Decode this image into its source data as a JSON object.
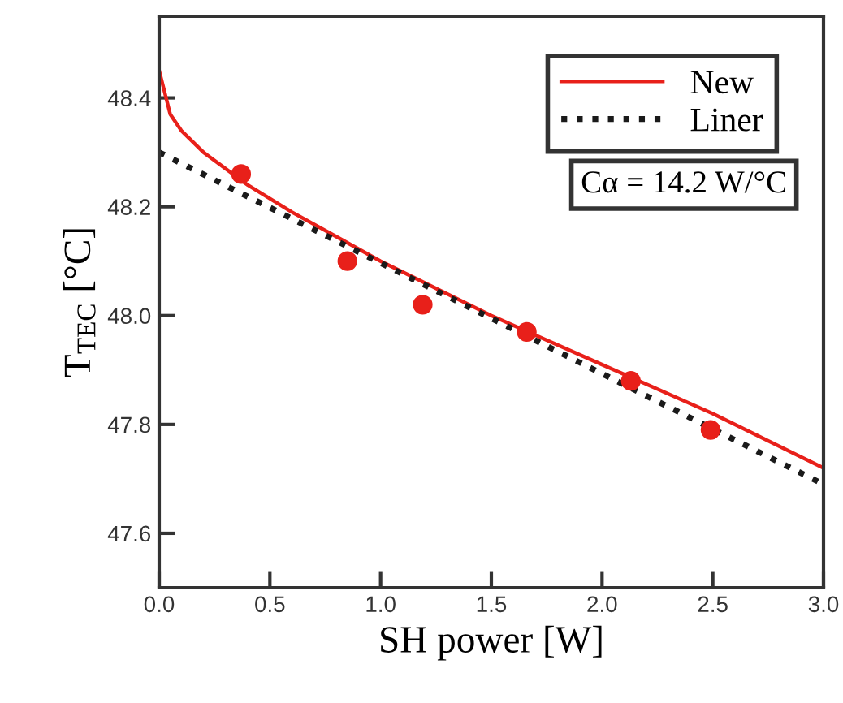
{
  "chart_data": {
    "type": "line",
    "xlabel": "SH power [W]",
    "ylabel": "T$_{TEC}$ [°C]",
    "xlim": [
      0,
      3.0
    ],
    "xticks": [
      {
        "value": 0,
        "label": "0.0"
      },
      0.5,
      {
        "value": 1,
        "label": "1.0"
      },
      1.5,
      {
        "value": 2,
        "label": "2.0"
      },
      2.5,
      {
        "value": 3,
        "label": "3.0"
      }
    ],
    "ylim": [
      47.5,
      48.55
    ],
    "yticks": [
      47.6,
      47.8,
      {
        "value": 48,
        "label": "48.0"
      },
      48.2,
      48.4
    ],
    "grid": false,
    "legend": "top right",
    "annotations": [
      "Cα = 14.2 W/°C"
    ],
    "series": [
      {
        "name": "New",
        "color": "#e8201a",
        "line_style": "solid",
        "x": [
          0,
          0.05,
          0.1,
          0.2,
          0.4,
          0.6,
          0.8,
          1.0,
          1.25,
          1.5,
          1.75,
          2.0,
          2.25,
          2.5,
          2.75,
          3.0
        ],
        "values": [
          48.45,
          48.37,
          48.34,
          48.3,
          48.24,
          48.19,
          48.145,
          48.1,
          48.05,
          48.0,
          47.955,
          47.91,
          47.865,
          47.82,
          47.77,
          47.72
        ]
      },
      {
        "name": "Liner",
        "color": "#1a1a1a",
        "line_style": "dotted",
        "x": [
          0,
          3.0
        ],
        "values": [
          48.3,
          47.69
        ]
      },
      {
        "type": "scatter",
        "color": "#e8201a",
        "marker": "circle",
        "x": [
          0.37,
          0.85,
          1.19,
          1.66,
          2.13,
          2.49
        ],
        "values": [
          48.26,
          48.1,
          48.02,
          47.97,
          47.88,
          47.79
        ]
      }
    ]
  }
}
